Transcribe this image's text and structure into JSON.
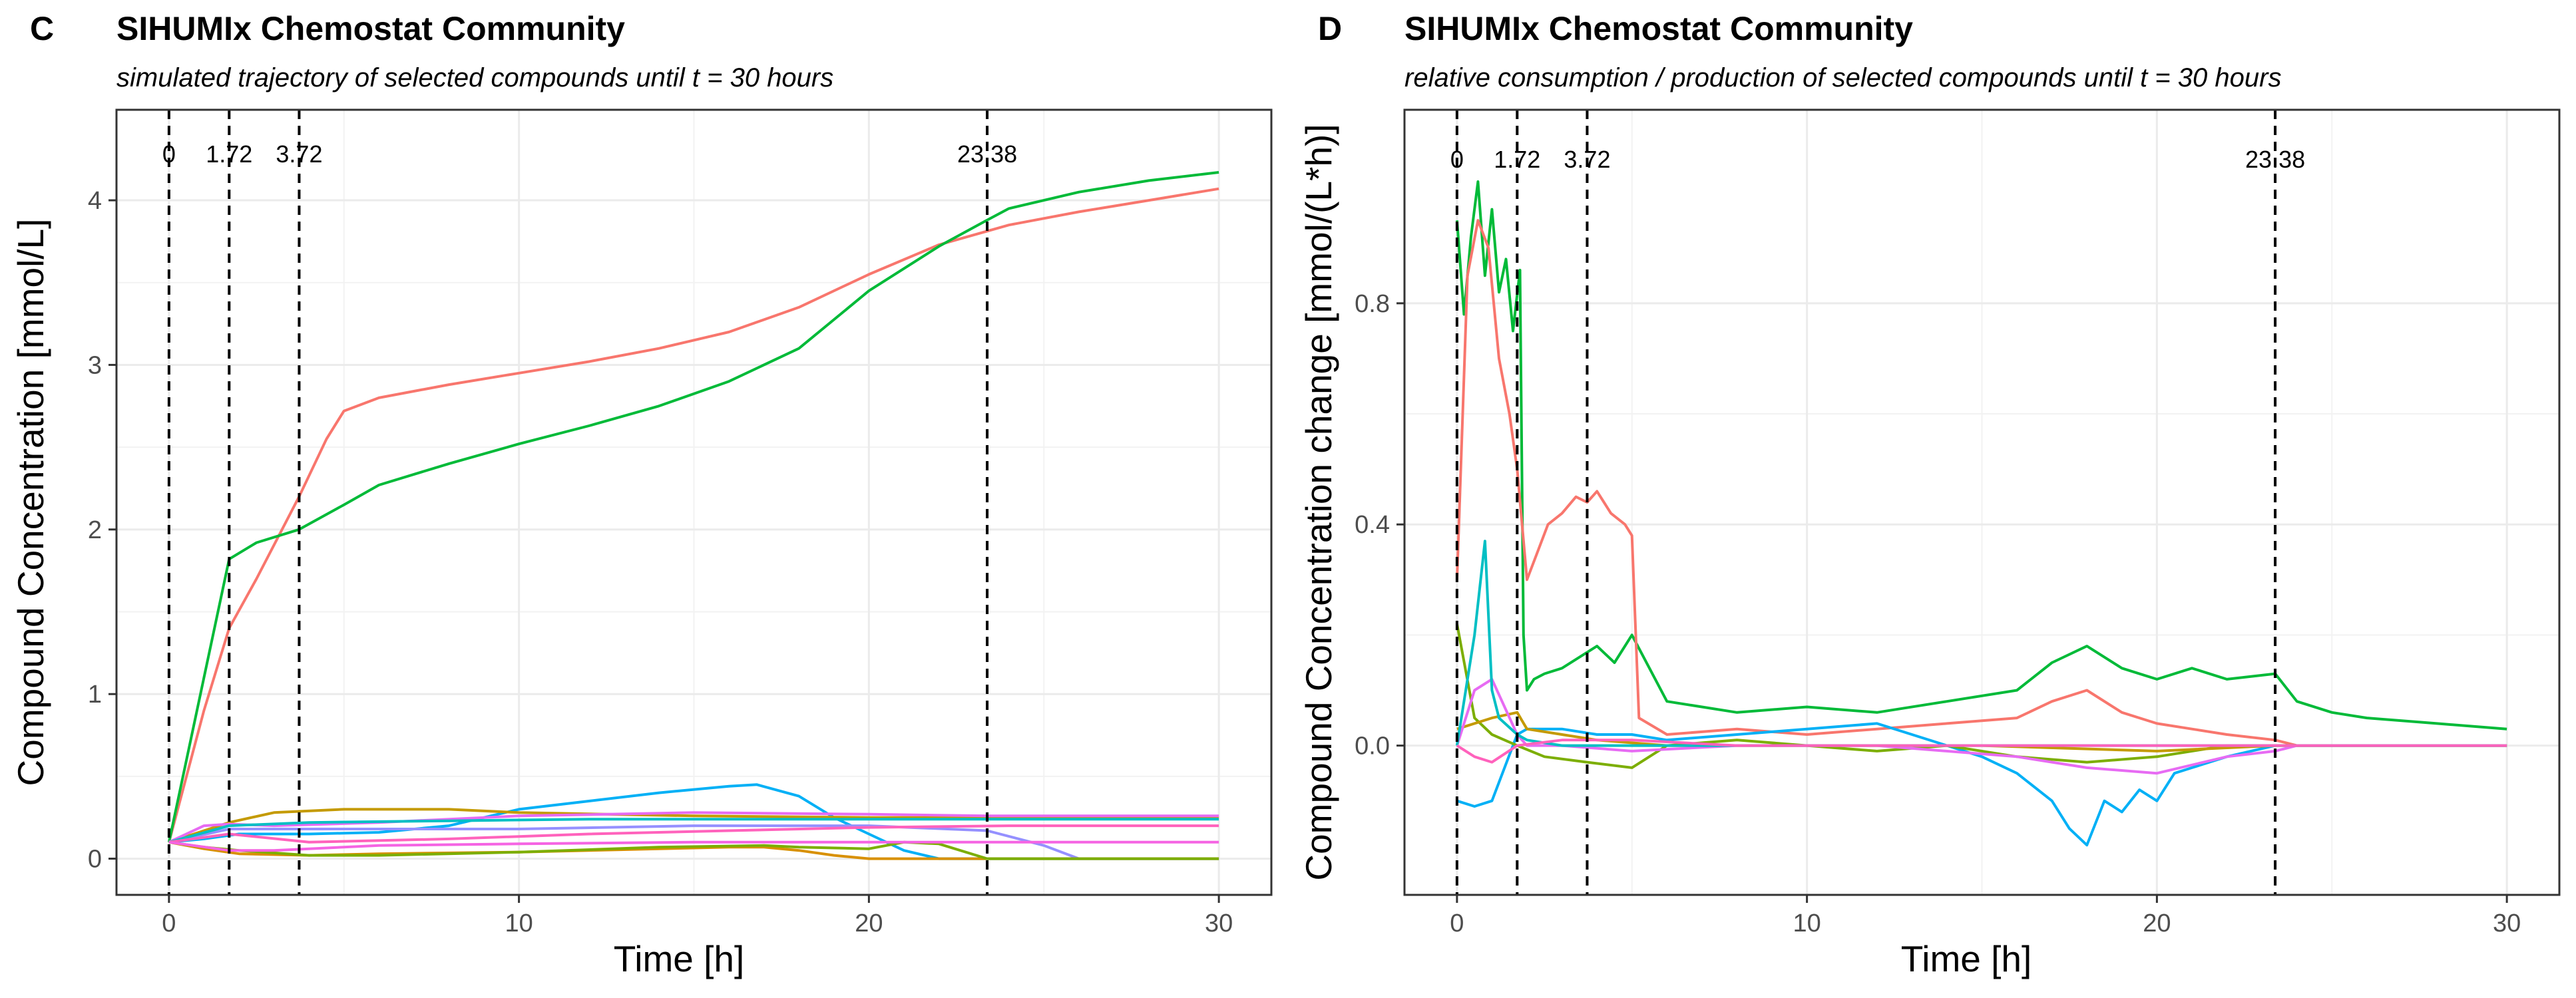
{
  "chart_data": [
    {
      "panel_letter": "C",
      "title": "SIHUMIx Chemostat Community",
      "subtitle": "simulated trajectory of selected compounds until t = 30 hours",
      "type": "line",
      "xlabel": "Time [h]",
      "ylabel": "Compound Concentration [mmol/L]",
      "xlim": [
        -1.5,
        31.5
      ],
      "ylim": [
        -0.22,
        4.55
      ],
      "xticks": [
        0,
        10,
        20,
        30
      ],
      "yticks": [
        0,
        1,
        2,
        3,
        4
      ],
      "grid": true,
      "vlines": [
        {
          "x": 0,
          "label": "0",
          "label_y": 4.28
        },
        {
          "x": 1.72,
          "label": "1.72",
          "label_y": 4.28
        },
        {
          "x": 3.72,
          "label": "3.72",
          "label_y": 4.28
        },
        {
          "x": 23.38,
          "label": "23.38",
          "label_y": 4.28
        }
      ],
      "series": [
        {
          "color": "#F8766D",
          "x": [
            0,
            1,
            1.72,
            2.5,
            3.72,
            4.5,
            5,
            6,
            8,
            10,
            12,
            14,
            16,
            18,
            20,
            22,
            24,
            26,
            28,
            30
          ],
          "y": [
            0.1,
            0.9,
            1.4,
            1.7,
            2.2,
            2.55,
            2.72,
            2.8,
            2.88,
            2.95,
            3.02,
            3.1,
            3.2,
            3.35,
            3.55,
            3.73,
            3.85,
            3.93,
            4.0,
            4.07
          ]
        },
        {
          "color": "#00BA38",
          "x": [
            0,
            1,
            1.72,
            2.5,
            3.72,
            5,
            6,
            8,
            10,
            12,
            14,
            16,
            18,
            20,
            22,
            23.38,
            24,
            26,
            28,
            30
          ],
          "y": [
            0.1,
            1.1,
            1.82,
            1.92,
            2.0,
            2.15,
            2.27,
            2.4,
            2.52,
            2.63,
            2.75,
            2.9,
            3.1,
            3.45,
            3.72,
            3.88,
            3.95,
            4.05,
            4.12,
            4.17
          ]
        },
        {
          "color": "#00B0F6",
          "x": [
            0,
            1,
            2,
            4,
            6,
            8,
            10,
            12,
            14,
            16,
            16.8,
            18,
            19,
            20,
            21,
            22,
            30
          ],
          "y": [
            0.1,
            0.12,
            0.15,
            0.15,
            0.16,
            0.2,
            0.3,
            0.35,
            0.4,
            0.44,
            0.45,
            0.38,
            0.25,
            0.15,
            0.05,
            0.0,
            0.0
          ]
        },
        {
          "color": "#C49A00",
          "x": [
            0,
            1.72,
            3,
            5,
            8,
            10,
            15,
            20,
            23.38,
            30
          ],
          "y": [
            0.1,
            0.22,
            0.28,
            0.3,
            0.3,
            0.28,
            0.26,
            0.25,
            0.25,
            0.25
          ]
        },
        {
          "color": "#E76BF3",
          "x": [
            0,
            1,
            1.72,
            3,
            6,
            10,
            15,
            20,
            23.38,
            30
          ],
          "y": [
            0.1,
            0.2,
            0.21,
            0.2,
            0.22,
            0.26,
            0.28,
            0.27,
            0.26,
            0.26
          ]
        },
        {
          "color": "#9590FF",
          "x": [
            0,
            1.72,
            5,
            10,
            15,
            20,
            23.38,
            25,
            26,
            30
          ],
          "y": [
            0.1,
            0.18,
            0.18,
            0.18,
            0.2,
            0.2,
            0.17,
            0.08,
            0.0,
            0.0
          ]
        },
        {
          "color": "#00BFC4",
          "x": [
            0,
            1.72,
            4,
            8,
            12,
            16,
            20,
            24,
            30
          ],
          "y": [
            0.1,
            0.2,
            0.22,
            0.23,
            0.24,
            0.24,
            0.24,
            0.24,
            0.24
          ]
        },
        {
          "color": "#FF62BC",
          "x": [
            0,
            1.72,
            4,
            8,
            12,
            16,
            20,
            24,
            30
          ],
          "y": [
            0.1,
            0.15,
            0.1,
            0.12,
            0.15,
            0.17,
            0.19,
            0.2,
            0.2
          ]
        },
        {
          "color": "#D89000",
          "x": [
            0,
            1,
            2,
            4,
            6,
            10,
            14,
            16,
            17,
            18,
            19,
            20,
            30
          ],
          "y": [
            0.1,
            0.06,
            0.03,
            0.02,
            0.03,
            0.04,
            0.06,
            0.07,
            0.07,
            0.05,
            0.02,
            0.0,
            0.0
          ]
        },
        {
          "color": "#7CAE00",
          "x": [
            0,
            1,
            2,
            4,
            6,
            10,
            14,
            17,
            18,
            20,
            21,
            22,
            23.38,
            30
          ],
          "y": [
            0.1,
            0.07,
            0.05,
            0.02,
            0.02,
            0.04,
            0.07,
            0.08,
            0.07,
            0.06,
            0.1,
            0.09,
            0.0,
            0.0
          ]
        },
        {
          "color": "#F564E3",
          "x": [
            0,
            1.72,
            3,
            6,
            10,
            15,
            20,
            23.38,
            30
          ],
          "y": [
            0.1,
            0.05,
            0.05,
            0.08,
            0.09,
            0.1,
            0.1,
            0.1,
            0.1
          ]
        }
      ]
    },
    {
      "panel_letter": "D",
      "title": "SIHUMIx Chemostat Community",
      "subtitle": "relative consumption / production of selected compounds until t = 30 hours",
      "type": "line",
      "xlabel": "Time [h]",
      "ylabel": "Compound Concentration change [mmol/(L*h)]",
      "xlim": [
        -1.5,
        31.5
      ],
      "ylim": [
        -0.27,
        1.15
      ],
      "xticks": [
        0,
        10,
        20,
        30
      ],
      "yticks": [
        0.0,
        0.4,
        0.8
      ],
      "ytick_labels": [
        "0.0",
        "0.4",
        "0.8"
      ],
      "grid": true,
      "vlines": [
        {
          "x": 0,
          "label": "0",
          "label_y": 1.06
        },
        {
          "x": 1.72,
          "label": "1.72",
          "label_y": 1.06
        },
        {
          "x": 3.72,
          "label": "3.72",
          "label_y": 1.06
        },
        {
          "x": 23.38,
          "label": "23.38",
          "label_y": 1.06
        }
      ],
      "series": [
        {
          "color": "#00BA38",
          "x": [
            0,
            0.2,
            0.4,
            0.6,
            0.8,
            1.0,
            1.2,
            1.4,
            1.6,
            1.8,
            1.9,
            2.0,
            2.2,
            2.5,
            3.0,
            3.5,
            4.0,
            4.5,
            5.0,
            6,
            8,
            10,
            12,
            14,
            16,
            17,
            18,
            19,
            20,
            21,
            22,
            23.38,
            24,
            25,
            26,
            28,
            30
          ],
          "y": [
            0.95,
            0.78,
            0.92,
            1.02,
            0.85,
            0.97,
            0.82,
            0.88,
            0.75,
            0.86,
            0.2,
            0.1,
            0.12,
            0.13,
            0.14,
            0.16,
            0.18,
            0.15,
            0.2,
            0.08,
            0.06,
            0.07,
            0.06,
            0.08,
            0.1,
            0.15,
            0.18,
            0.14,
            0.12,
            0.14,
            0.12,
            0.13,
            0.08,
            0.06,
            0.05,
            0.04,
            0.03
          ]
        },
        {
          "color": "#F8766D",
          "x": [
            0,
            0.3,
            0.6,
            0.9,
            1.2,
            1.5,
            1.72,
            2.0,
            2.3,
            2.6,
            3.0,
            3.4,
            3.72,
            4.0,
            4.4,
            4.8,
            5.0,
            5.2,
            6,
            8,
            10,
            12,
            14,
            16,
            17,
            18,
            19,
            20,
            21,
            22,
            23.38,
            24,
            26,
            28,
            30
          ],
          "y": [
            0.3,
            0.85,
            0.95,
            0.9,
            0.7,
            0.6,
            0.5,
            0.3,
            0.35,
            0.4,
            0.42,
            0.45,
            0.44,
            0.46,
            0.42,
            0.4,
            0.38,
            0.05,
            0.02,
            0.03,
            0.02,
            0.03,
            0.04,
            0.05,
            0.08,
            0.1,
            0.06,
            0.04,
            0.03,
            0.02,
            0.01,
            0.0,
            0.0,
            0.0,
            0.0
          ]
        },
        {
          "color": "#00B0F6",
          "x": [
            0,
            0.5,
            1.0,
            1.72,
            2,
            3,
            4,
            5,
            6,
            8,
            10,
            12,
            14,
            15,
            16,
            17,
            17.5,
            18,
            18.5,
            19,
            19.5,
            20,
            20.5,
            21,
            22,
            23.38,
            24,
            26,
            28,
            30
          ],
          "y": [
            -0.1,
            -0.11,
            -0.1,
            0.02,
            0.03,
            0.03,
            0.02,
            0.02,
            0.01,
            0.02,
            0.03,
            0.04,
            0.0,
            -0.02,
            -0.05,
            -0.1,
            -0.15,
            -0.18,
            -0.1,
            -0.12,
            -0.08,
            -0.1,
            -0.05,
            -0.04,
            -0.02,
            0.0,
            0.0,
            0.0,
            0.0,
            0.0
          ]
        },
        {
          "color": "#7CAE00",
          "x": [
            0,
            0.5,
            1.0,
            1.72,
            2.5,
            3.72,
            5,
            6,
            8,
            10,
            12,
            14,
            16,
            18,
            20,
            22,
            23.38,
            24,
            26,
            28,
            30
          ],
          "y": [
            0.22,
            0.05,
            0.02,
            0.0,
            -0.02,
            -0.03,
            -0.04,
            0.0,
            0.01,
            0.0,
            -0.01,
            0.0,
            -0.02,
            -0.03,
            -0.02,
            0.0,
            0.0,
            0.0,
            0.0,
            0.0,
            0.0
          ]
        },
        {
          "color": "#C49A00",
          "x": [
            0,
            1,
            1.72,
            2,
            3,
            4,
            6,
            10,
            15,
            20,
            23.38,
            25,
            30
          ],
          "y": [
            0.03,
            0.05,
            0.06,
            0.03,
            0.02,
            0.01,
            0.0,
            0.0,
            0.0,
            -0.01,
            0.0,
            0.0,
            0.0
          ]
        },
        {
          "color": "#E76BF3",
          "x": [
            0,
            0.5,
            1,
            1.72,
            2,
            3,
            5,
            8,
            12,
            16,
            18,
            20,
            22,
            23.38,
            24,
            26,
            28,
            30
          ],
          "y": [
            0.0,
            0.1,
            0.12,
            0.02,
            0.0,
            0.0,
            -0.01,
            0.0,
            0.0,
            -0.02,
            -0.04,
            -0.05,
            -0.02,
            -0.01,
            0.0,
            0.0,
            0.0,
            0.0
          ]
        },
        {
          "color": "#00BFC4",
          "x": [
            0,
            0.5,
            0.8,
            1.0,
            1.2,
            1.72,
            2,
            3,
            4,
            6,
            10,
            15,
            20,
            23.38,
            30
          ],
          "y": [
            0.0,
            0.2,
            0.37,
            0.1,
            0.05,
            0.02,
            0.01,
            0.0,
            0.0,
            0.0,
            0.0,
            0.0,
            0.0,
            0.0,
            0.0
          ]
        },
        {
          "color": "#FF62BC",
          "x": [
            0,
            0.5,
            1,
            1.72,
            3,
            5,
            8,
            12,
            16,
            20,
            23.38,
            26,
            30
          ],
          "y": [
            0.0,
            -0.02,
            -0.03,
            0.0,
            0.01,
            0.01,
            0.0,
            0.0,
            0.0,
            0.0,
            0.0,
            0.0,
            0.0
          ]
        }
      ]
    }
  ]
}
